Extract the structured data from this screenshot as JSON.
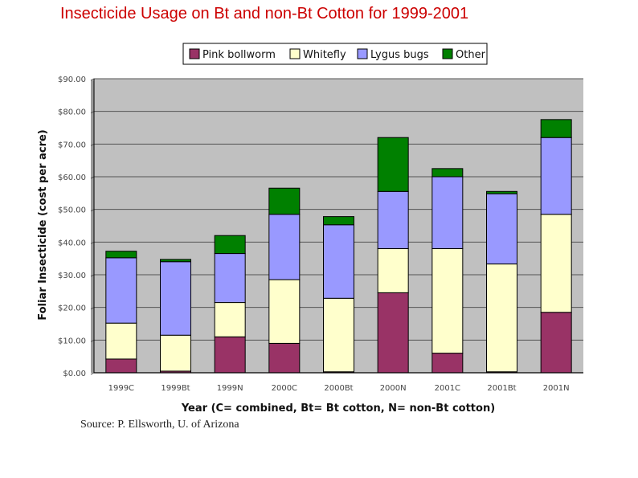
{
  "slide": {
    "title": "Insecticide Usage on Bt and non-Bt Cotton for 1999-2001",
    "source": "Source: P. Ellsworth, U. of Arizona"
  },
  "chart_data": {
    "type": "bar",
    "stacked": true,
    "xlabel": "Year (C= combined, Bt= Bt cotton, N= non-Bt cotton)",
    "ylabel": "Foliar Insecticide (cost per acre)",
    "ylim": [
      0,
      90
    ],
    "yticks": [
      "$0.00",
      "$10.00",
      "$20.00",
      "$30.00",
      "$40.00",
      "$50.00",
      "$60.00",
      "$70.00",
      "$80.00",
      "$90.00"
    ],
    "ytick_values": [
      0,
      10,
      20,
      30,
      40,
      50,
      60,
      70,
      80,
      90
    ],
    "grid": true,
    "legend_position": "top",
    "categories": [
      "1999C",
      "1999Bt",
      "1999N",
      "2000C",
      "2000Bt",
      "2000N",
      "2001C",
      "2001Bt",
      "2001N"
    ],
    "series": [
      {
        "name": "Pink bollworm",
        "color": "#993366",
        "values": [
          4.2,
          0.5,
          11.0,
          9.0,
          0.3,
          24.5,
          6.0,
          0.3,
          18.5
        ]
      },
      {
        "name": "Whitefly",
        "color": "#ffffcc",
        "values": [
          11.0,
          11.0,
          10.5,
          19.5,
          22.5,
          13.5,
          32.0,
          33.0,
          30.0
        ]
      },
      {
        "name": "Lygus bugs",
        "color": "#9999ff",
        "values": [
          20.0,
          22.5,
          15.0,
          20.0,
          22.5,
          17.5,
          22.0,
          21.5,
          23.5
        ]
      },
      {
        "name": "Other",
        "color": "#008000",
        "values": [
          2.0,
          0.7,
          5.5,
          8.0,
          2.5,
          16.5,
          2.5,
          0.7,
          5.5
        ]
      }
    ]
  }
}
